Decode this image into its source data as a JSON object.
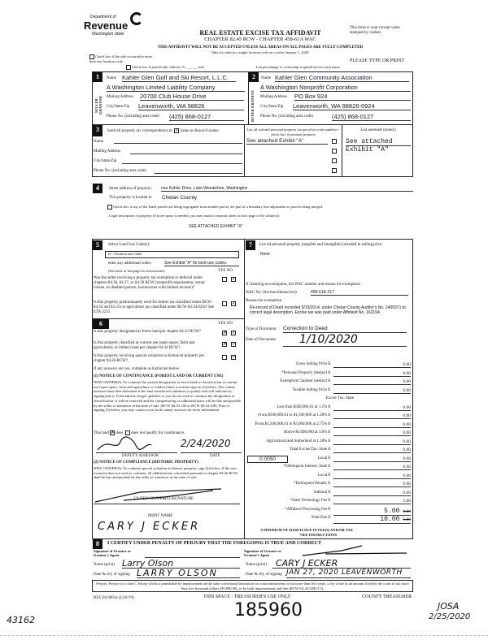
{
  "header": {
    "dept_of": "Department of",
    "revenue": "Revenue",
    "state": "Washington State",
    "title": "REAL ESTATE EXCISE TAX AFFIDAVIT",
    "chapter": "CHAPTER 82.45 RCW - CHAPTER 458-61A WAC",
    "warning": "THIS AFFIDAVIT WILL NOT BE ACCEPTED UNLESS ALL AREAS ON ALL PAGES ARE FULLY COMPLETED",
    "only_for": "Only for sales in a single location code on or after January 1, 2020.",
    "receipt_note": "This form is your receipt when stamped by cashier.",
    "type_or_print": "PLEASE TYPE OR PRINT",
    "multi_location": "Check box if the sale occurred in more than one location code.",
    "partial_sale": "Check box if partial sale, indicate %",
    "sold": "sold.",
    "ownership_note": "List percentage of ownership acquired next to each name."
  },
  "seller": {
    "num": "1",
    "side_label": "SELLER GRANTOR",
    "name_label": "Name",
    "name": "Kahler Glen Golf and Ski Resort, L.L.C.",
    "entity": "A Washington Limited Liability Company",
    "mail_label": "Mailing Address",
    "mail": "20700 Club House Drive",
    "city_label": "City/State/Zip",
    "city": "Leavenworth, WA  98826",
    "phone_label": "Phone No. (including area code)",
    "phone": "(425) 868-0127"
  },
  "buyer": {
    "num": "2",
    "side_label": "BUYER GRANTEE",
    "name_label": "Name",
    "name": "Kahler Glen Community Association",
    "entity": "A Washington Nonprofit Corporation",
    "mail_label": "Mailing Address",
    "mail": "PO Box 924",
    "city_label": "City/State/Zip",
    "city": "Leavenworth, WA  98826-0924",
    "phone_label": "Phone No. (including area code)",
    "phone": "(425) 868-0127"
  },
  "sec3": {
    "num": "3",
    "send_label": "Send all property tax correspondence to:",
    "same_label": "Same as Buyer/Grantee",
    "same_checked": true,
    "name_label": "Name",
    "mail_label": "Mailing Address",
    "city_label": "City/State/Zip",
    "phone_label": "Phone No. (including area code)",
    "parcel_header": "List all real and personal property tax parcel account numbers - check box if personal property",
    "parcel": "See attached Exhibit \"A\"",
    "assessed_header": "List assessed value(s)",
    "assessed_1": "See attached",
    "assessed_2": "Exhibit \"A\""
  },
  "sec4": {
    "num": "4",
    "street_label": "Street address of property:",
    "street": "nna Kahler Drive, Lake Wenatchee, Washington",
    "located_label": "This property is located in",
    "county": "Chelan County",
    "segregated": "Check box if any of the listed parcels are being segregated from another parcel, are part of a boundary line adjustment or parcels being merged.",
    "legal_label": "Legal description of property (if more space is needed, you may attach a separate sheet to each page of the affidavit)",
    "legal": "SEE ATTACHED EXHIBIT \"A\""
  },
  "sec5": {
    "num": "5",
    "select_label": "Select Land Use Code(s):",
    "code": "19 - Vacation and cabin",
    "additional_label": "enter any additional codes:",
    "additional": "See Exhibit \"A\" for land use codes.",
    "see_back": "(See back of last page for instructions)",
    "yes": "YES",
    "no": "NO",
    "q1": "Was the seller receiving a property tax exemption or deferral under chapters 84.36, 84.37, or 84.38 RCW (nonprofit organization, senior citizen, or disabled person, homeowner with limited income)?",
    "q2": "Is this property predominantly used for timber (as classified under RCW 84.34 and 84.33) or agriculture (as classified under RCW 84.34.020)? See ETA 3215"
  },
  "sec6": {
    "num": "6",
    "yes": "YES",
    "no": "NO",
    "q1": "Is this property designated as forest land per chapter 84.33 RCW?",
    "q2": "Is this property classified as current use (open space, farm and agricultural, or timber) land per chapter 84.34 RCW?",
    "q3": "Is this property receiving special valuation as historical property per chapter 84.26 RCW?",
    "if_yes": "If any answers are yes, complete as instructed below.",
    "n1_title": "(1) NOTICE OF CONTINUANCE (FOREST LAND OR CURRENT USE)",
    "n1_body": "NEW OWNER(S): To continue the current designation as forest land or classification as current use (open space, farm and agriculture, or timber) land, you must sign on (3) below. The county assessor must then determine if the land transferred continues to qualify and will indicate by signing below. If the land no longer qualifies or you do not wish to continue the designation or classification, it will be removed and the compensating or additional taxes will be due and payable by the seller or transferor at the time of sale. (RCW 84.33.140 or RCW 84.34.108). Prior to signing (3) below, you may contact your local county assessor for more information.",
    "land_does": "This land",
    "does": "does",
    "not_qualify": "does not qualify for continuance.",
    "assessor_label": "DEPUTY ASSESSOR",
    "date_label": "DATE",
    "assessor_date": "2/24/2020",
    "n2_title": "(2) NOTICE OF COMPLIANCE (HISTORIC PROPERTY)",
    "n2_body": "NEW OWNER(S): To continue special valuation as historic property, sign (3) below. If the new owner(s) does not wish to continue, all additional tax calculated pursuant to chapter 84.26 RCW, shall be due and payable by the seller or transferor at the time of sale.",
    "sig_label": "(3) NEW OWNER(S) SIGNATURE",
    "print_label": "PRINT NAME",
    "print_name": "CARY J ECKER"
  },
  "sec7": {
    "num": "7",
    "personal_label": "List all personal property (tangible and intangible) included in selling price.",
    "personal": "None",
    "exempt_label": "If claiming an exemption, list WAC number and reason for exemption:",
    "wac_label": "WAC No. (Section/Subsection)",
    "wac": "458-61A-217",
    "reason_label": "Reason for exemption",
    "reason": "Re-record of Deed recorded 5/19/2014, under Chelan County Auditor's No. 2400371 to correct legal description.  Excise tax was paid under Affidavit No. 162194.",
    "doc_type_label": "Type of Document",
    "doc_type": "Correction to Deed",
    "doc_date_label": "Date of Document",
    "doc_date": "1/10/2020"
  },
  "tax": {
    "rows": [
      {
        "label": "Gross Selling Price $",
        "value": "0.00"
      },
      {
        "label": "*Personal Property (deduct) $",
        "value": "0.00"
      },
      {
        "label": "Exemption Claimed (deduct) $",
        "value": "0.00"
      },
      {
        "label": "Taxable Selling Price $",
        "value": "0.00"
      },
      {
        "label": "Excise Tax: State",
        "value": ""
      },
      {
        "label": "Less than $500,000.01 at 1.1% $",
        "value": "0.00"
      },
      {
        "label": "From $500,000.01 to $1,500,000 at 1.28% $",
        "value": "0.00"
      },
      {
        "label": "From $1,500,000.01 to $3,000,000 at 2.75% $",
        "value": "0.00"
      },
      {
        "label": "Above $3,000,000 at 3.0% $",
        "value": "0.00"
      },
      {
        "label": "Agricultural and timberland at 1.28% $",
        "value": "0.00"
      },
      {
        "label": "Total Excise Tax: State $",
        "value": "0.00"
      },
      {
        "label": "Local $",
        "value": "0.00"
      },
      {
        "label": "*Delinquent Interest: State $",
        "value": "0.00"
      },
      {
        "label": "Local $",
        "value": "0.00"
      },
      {
        "label": "*Delinquent Penalty $",
        "value": "0.00"
      },
      {
        "label": "Subtotal $",
        "value": "0.00"
      },
      {
        "label": "*State Technology Fee $",
        "value": "5.00"
      },
      {
        "label": "*Affidavit Processing Fee $",
        "value": "5.00",
        "struck": "0.00"
      },
      {
        "label": "Total Due $",
        "value": "10.00",
        "struck": "5.00"
      }
    ],
    "local_rate": "0.0050",
    "minimum": "A MINIMUM OF $10.00 IS DUE IN FEE(S) AND/OR TAX",
    "see_instr": "*SEE INSTRUCTIONS"
  },
  "sec8": {
    "num": "8",
    "certify": "I CERTIFY UNDER PENALTY OF PERJURY THAT THE FOREGOING IS TRUE AND CORRECT",
    "grantor_sig_label": "Signature of Grantor or Grantor's Agent",
    "grantee_sig_label": "Signature of Grantee or Grantee's Agent",
    "name_label": "Name (print)",
    "date_label": "Date & city of signing",
    "grantor_name": "Larry Olson",
    "grantor_date": "LARRY OLSON",
    "grantee_name": "CARY J ECKER",
    "grantee_date": "JAN 27, 2020 LEAVENWORTH"
  },
  "footer": {
    "perjury": "Perjury: Perjury is a class C felony which is punishable by imprisonment in the state correctional institution for a maximum term of not more than five years, or by a fine in an amount fixed by the court of not more than five thousand dollars ($5,000.00), or by both imprisonment and fine (RCW 9A.20.020(1C)).",
    "rev": "REV 84 0001a (12/6/19)",
    "treasurer_space": "THIS SPACE - TREASURER'S USE ONLY",
    "county_treasurer": "COUNTY TREASURER",
    "stamp_no": "185960",
    "left_no": "43162",
    "initials": "JOSA",
    "initials_date": "2/25/2020"
  }
}
